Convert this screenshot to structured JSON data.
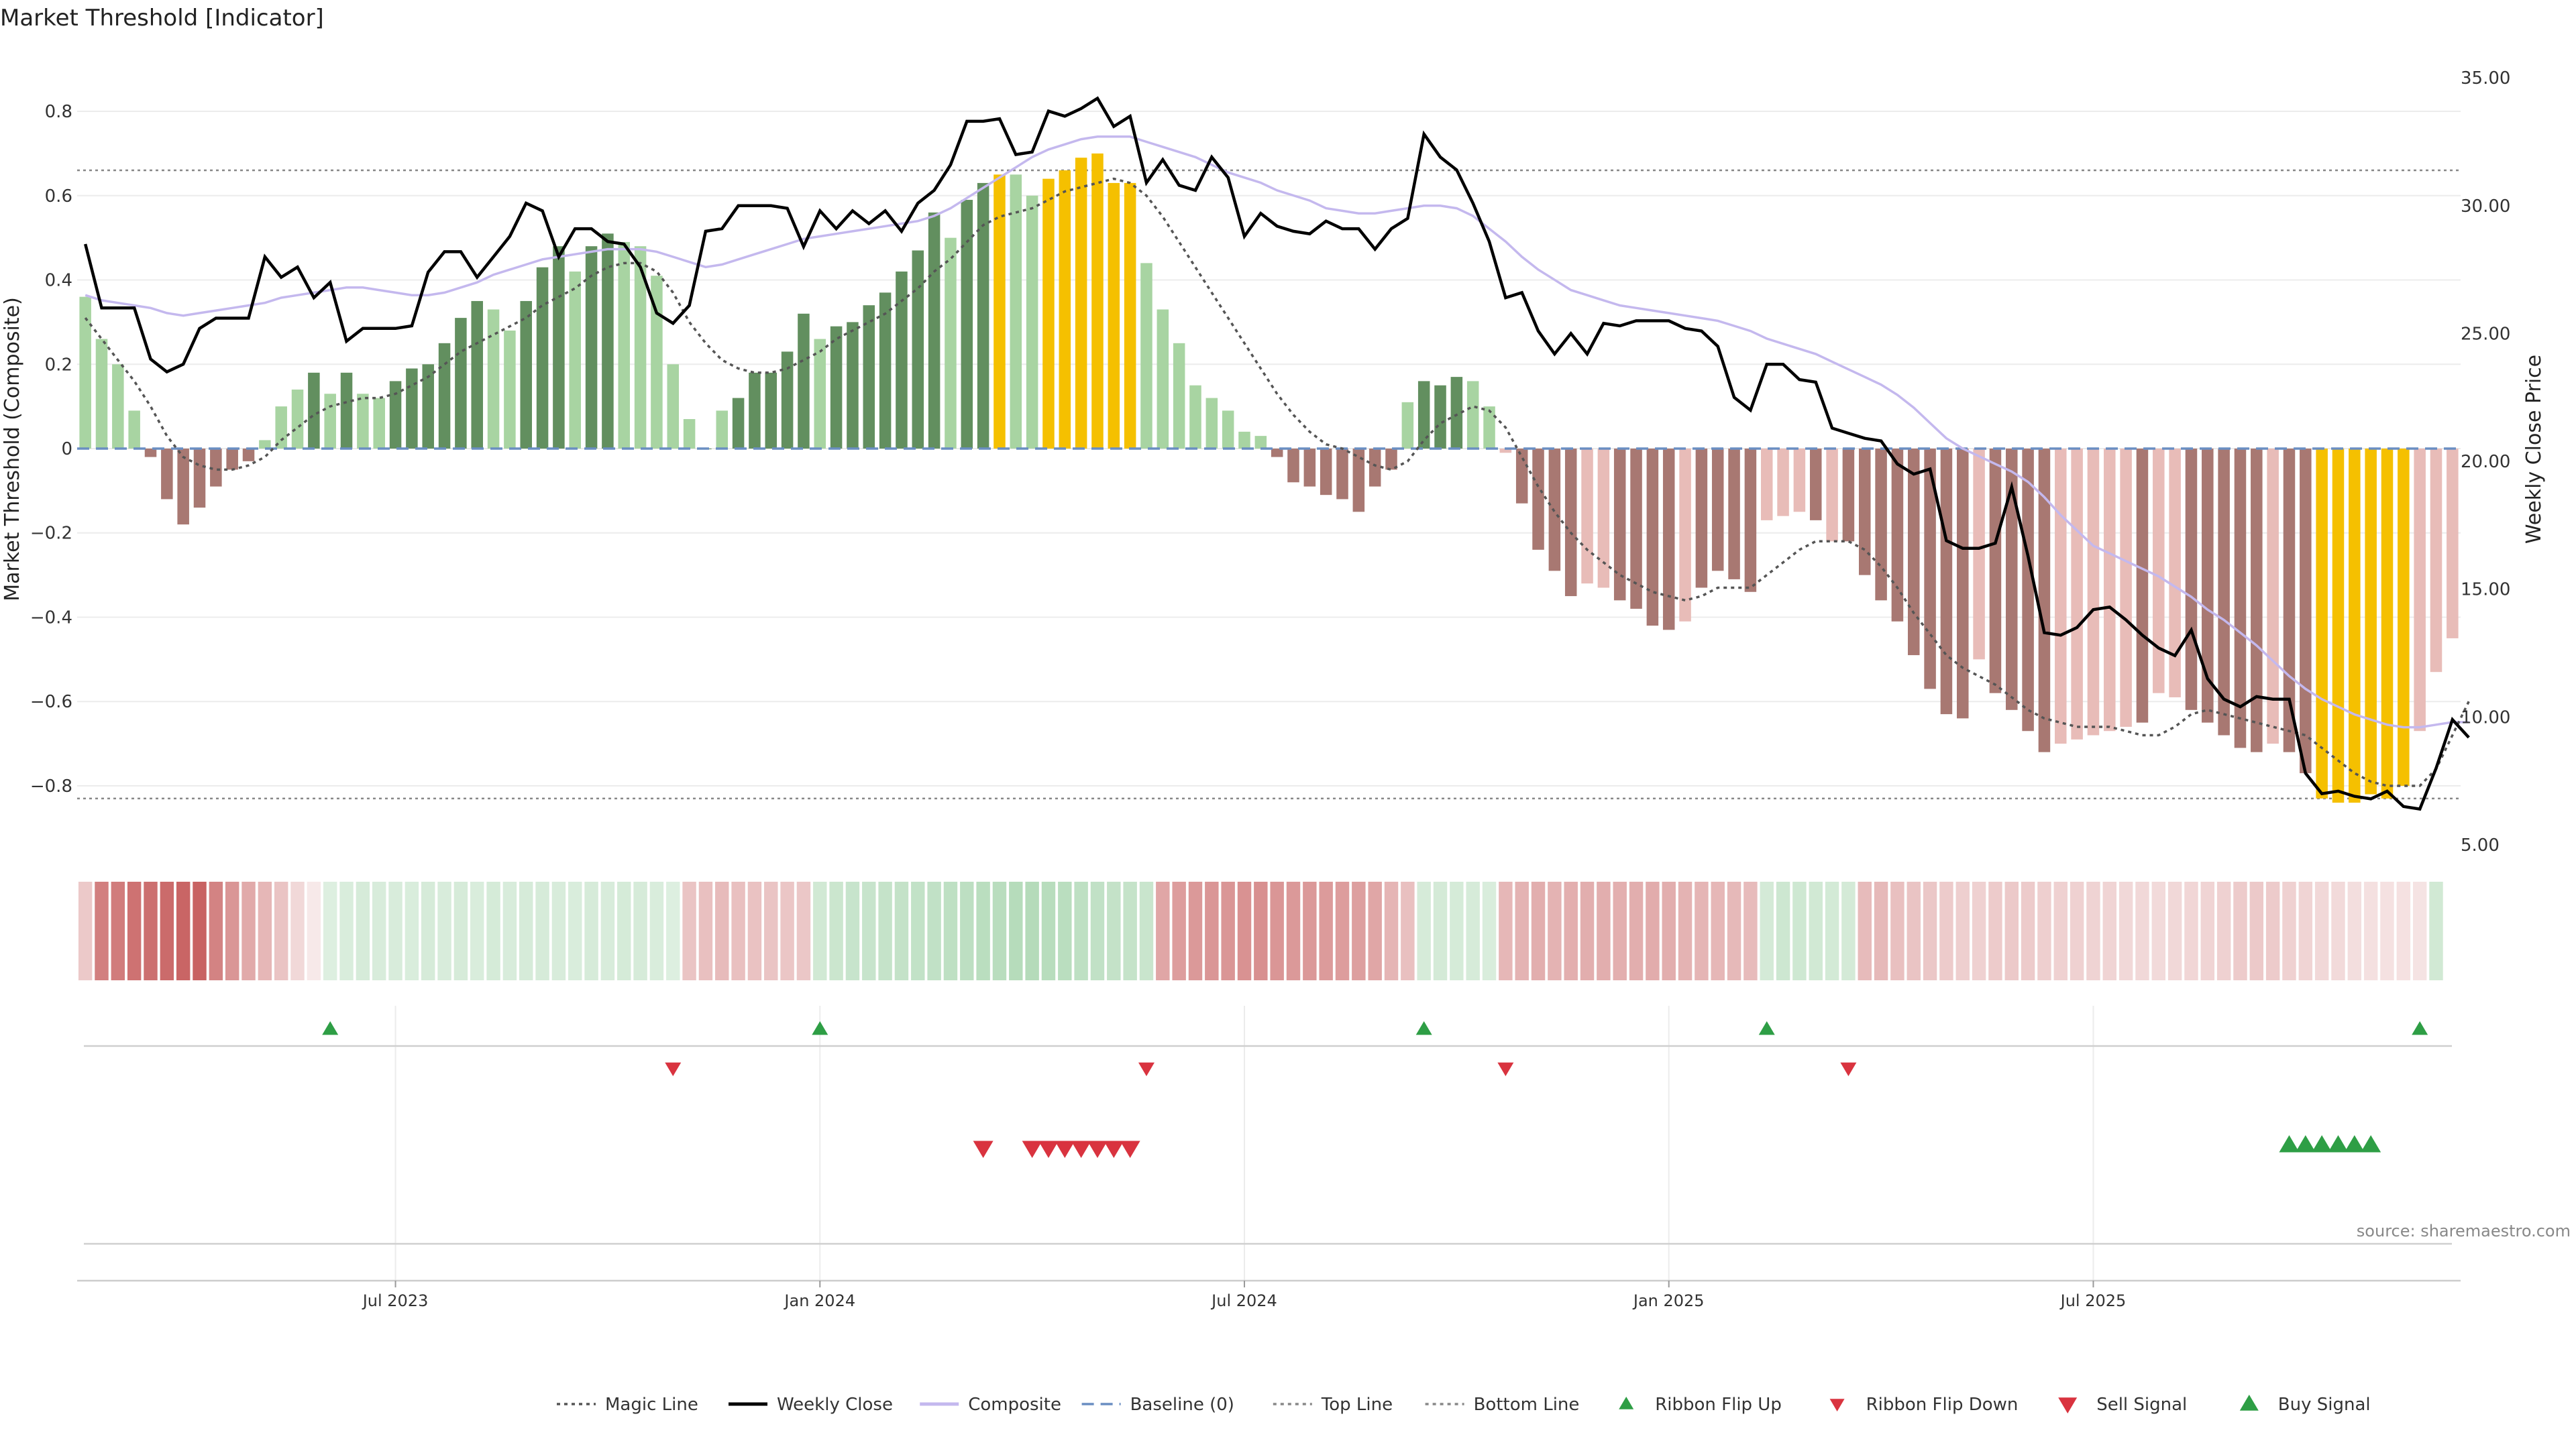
{
  "title": "Market Threshold [Indicator]",
  "source": "source: sharemaestro.com",
  "colors": {
    "strong_green": "#628f5f",
    "light_green": "#a8d4a2",
    "strong_red": "#a87872",
    "light_red": "#e8bcb8",
    "gold": "#f5c000",
    "close_line": "#000000",
    "composite": "#c4b8ee",
    "magic": "#555555",
    "baseline": "#6a8ec2",
    "sell_marker": "#d9333f",
    "buy_marker": "#2e9e45"
  },
  "legend": [
    {
      "label": "Magic Line",
      "kind": "dotted",
      "color": "#555555"
    },
    {
      "label": "Weekly Close",
      "kind": "line",
      "color": "#000000"
    },
    {
      "label": "Composite",
      "kind": "line",
      "color": "#c4b8ee"
    },
    {
      "label": "Baseline (0)",
      "kind": "dashed",
      "color": "#6a8ec2"
    },
    {
      "label": "Top Line",
      "kind": "dotted",
      "color": "#888888"
    },
    {
      "label": "Bottom Line",
      "kind": "dotted",
      "color": "#888888"
    },
    {
      "label": "Ribbon Flip Up",
      "kind": "tri-up",
      "color": "#2e9e45"
    },
    {
      "label": "Ribbon Flip Down",
      "kind": "tri-down",
      "color": "#d9333f"
    },
    {
      "label": "Sell Signal",
      "kind": "tri-down-big",
      "color": "#d9333f"
    },
    {
      "label": "Buy Signal",
      "kind": "tri-up-big",
      "color": "#2e9e45"
    }
  ],
  "chart_data": {
    "type": "bar",
    "title": "Market Threshold [Indicator]",
    "ylabel": "Market Threshold (Composite)",
    "y2label": "Weekly Close Price",
    "ylim": [
      -0.94,
      0.94
    ],
    "y2lim": [
      5.0,
      36.0
    ],
    "yticks": [
      "0.8",
      "0.6",
      "0.4",
      "0.2",
      "0",
      "−0.2",
      "−0.4",
      "−0.6",
      "−0.8"
    ],
    "y2ticks": [
      "35.00",
      "30.00",
      "25.00",
      "20.00",
      "15.00",
      "10.00",
      "5.00"
    ],
    "top_line": 0.66,
    "bottom_line": -0.83,
    "xticks": [
      {
        "label": "Jul 2023",
        "week": 19.5
      },
      {
        "label": "Jan 2024",
        "week": 45.5
      },
      {
        "label": "Jul 2024",
        "week": 71.5
      },
      {
        "label": "Jan 2025",
        "week": 97.5
      },
      {
        "label": "Jul 2025",
        "week": 123.5
      }
    ],
    "series": [
      {
        "name": "Composite",
        "values": [
          0.36,
          0.26,
          0.2,
          0.09,
          -0.02,
          -0.12,
          -0.18,
          -0.14,
          -0.09,
          -0.05,
          -0.03,
          0.02,
          0.1,
          0.14,
          0.18,
          0.13,
          0.18,
          0.13,
          0.12,
          0.16,
          0.19,
          0.2,
          0.25,
          0.31,
          0.35,
          0.33,
          0.28,
          0.35,
          0.43,
          0.48,
          0.42,
          0.48,
          0.51,
          0.49,
          0.48,
          0.41,
          0.2,
          0.07,
          0.0,
          0.09,
          0.12,
          0.18,
          0.18,
          0.23,
          0.32,
          0.26,
          0.29,
          0.3,
          0.34,
          0.37,
          0.42,
          0.47,
          0.56,
          0.5,
          0.59,
          0.63,
          0.65,
          0.65,
          0.6,
          0.64,
          0.66,
          0.69,
          0.7,
          0.63,
          0.63,
          0.44,
          0.33,
          0.25,
          0.15,
          0.12,
          0.09,
          0.04,
          0.03,
          -0.02,
          -0.08,
          -0.09,
          -0.11,
          -0.12,
          -0.15,
          -0.09,
          -0.05,
          0.11,
          0.16,
          0.15,
          0.17,
          0.16,
          0.1,
          -0.01,
          -0.13,
          -0.24,
          -0.29,
          -0.35,
          -0.32,
          -0.33,
          -0.36,
          -0.38,
          -0.42,
          -0.43,
          -0.41,
          -0.33,
          -0.29,
          -0.31,
          -0.34,
          -0.17,
          -0.16,
          -0.15,
          -0.17,
          -0.22,
          -0.22,
          -0.3,
          -0.36,
          -0.41,
          -0.49,
          -0.57,
          -0.63,
          -0.64,
          -0.5,
          -0.58,
          -0.62,
          -0.67,
          -0.72,
          -0.7,
          -0.69,
          -0.68,
          -0.67,
          -0.66,
          -0.65,
          -0.58,
          -0.59,
          -0.62,
          -0.65,
          -0.68,
          -0.71,
          -0.72,
          -0.7,
          -0.72,
          -0.77,
          -0.83,
          -0.84,
          -0.84,
          -0.82,
          -0.83,
          -0.8,
          -0.67,
          -0.53,
          -0.45
        ]
      },
      {
        "name": "Weekly Close",
        "values": [
          28.5,
          26.0,
          26.0,
          26.0,
          24.0,
          23.5,
          23.8,
          25.2,
          25.6,
          25.6,
          25.6,
          28.0,
          27.2,
          27.6,
          26.4,
          27.0,
          24.7,
          25.2,
          25.2,
          25.2,
          25.3,
          27.4,
          28.2,
          28.2,
          27.2,
          28.0,
          28.8,
          30.1,
          29.8,
          28.0,
          29.1,
          29.1,
          28.6,
          28.5,
          27.6,
          25.8,
          25.4,
          26.1,
          29.0,
          29.1,
          30.0,
          30.0,
          30.0,
          29.9,
          28.4,
          29.8,
          29.1,
          29.8,
          29.3,
          29.8,
          29.0,
          30.1,
          30.6,
          31.6,
          33.3,
          33.3,
          33.4,
          32.0,
          32.1,
          33.7,
          33.5,
          33.8,
          34.2,
          33.1,
          33.5,
          30.9,
          31.8,
          30.8,
          30.6,
          31.9,
          31.1,
          28.8,
          29.7,
          29.2,
          29.0,
          28.9,
          29.4,
          29.1,
          29.1,
          28.3,
          29.1,
          29.5,
          32.8,
          31.9,
          31.4,
          30.1,
          28.6,
          26.4,
          26.6,
          25.1,
          24.2,
          25.0,
          24.2,
          25.4,
          25.3,
          25.5,
          25.5,
          25.5,
          25.2,
          25.1,
          24.5,
          22.5,
          22.0,
          23.8,
          23.8,
          23.2,
          23.1,
          21.3,
          21.1,
          20.9,
          20.8,
          19.9,
          19.5,
          19.7,
          16.9,
          16.6,
          16.6,
          16.8,
          19.0,
          16.3,
          13.3,
          13.2,
          13.5,
          14.2,
          14.3,
          13.8,
          13.2,
          12.7,
          12.4,
          13.4,
          11.5,
          10.7,
          10.4,
          10.8,
          10.7,
          10.7,
          7.8,
          7.0,
          7.1,
          6.9,
          6.8,
          7.1,
          6.5,
          6.4,
          8.0,
          9.9,
          9.2
        ]
      },
      {
        "name": "Composite",
        "values": [
          26.5,
          26.3,
          26.2,
          26.1,
          26.0,
          25.8,
          25.7,
          25.8,
          25.9,
          26.0,
          26.1,
          26.2,
          26.4,
          26.5,
          26.6,
          26.7,
          26.8,
          26.8,
          26.7,
          26.6,
          26.5,
          26.5,
          26.6,
          26.8,
          27.0,
          27.3,
          27.5,
          27.7,
          27.9,
          28.0,
          28.1,
          28.2,
          28.3,
          28.3,
          28.3,
          28.2,
          28.0,
          27.8,
          27.6,
          27.7,
          27.9,
          28.1,
          28.3,
          28.5,
          28.7,
          28.8,
          28.9,
          29.0,
          29.1,
          29.2,
          29.3,
          29.4,
          29.6,
          29.9,
          30.3,
          30.7,
          31.1,
          31.5,
          31.9,
          32.2,
          32.4,
          32.6,
          32.7,
          32.7,
          32.7,
          32.5,
          32.3,
          32.1,
          31.9,
          31.6,
          31.3,
          31.1,
          30.9,
          30.6,
          30.4,
          30.2,
          29.9,
          29.8,
          29.7,
          29.7,
          29.8,
          29.9,
          30.0,
          30.0,
          29.9,
          29.6,
          29.1,
          28.6,
          28.0,
          27.5,
          27.1,
          26.7,
          26.5,
          26.3,
          26.1,
          26.0,
          25.9,
          25.8,
          25.7,
          25.6,
          25.5,
          25.3,
          25.1,
          24.8,
          24.6,
          24.4,
          24.2,
          23.9,
          23.6,
          23.3,
          23.0,
          22.6,
          22.1,
          21.5,
          20.9,
          20.5,
          20.2,
          19.9,
          19.6,
          19.2,
          18.6,
          17.9,
          17.3,
          16.7,
          16.4,
          16.1,
          15.8,
          15.5,
          15.1,
          14.7,
          14.2,
          13.8,
          13.3,
          12.8,
          12.2,
          11.6,
          11.1,
          10.7,
          10.4,
          10.1,
          9.9,
          9.7,
          9.6,
          9.6,
          9.7,
          9.8,
          9.8
        ]
      },
      {
        "name": "Magic Line",
        "values": [
          0.31,
          0.26,
          0.21,
          0.16,
          0.1,
          0.03,
          -0.02,
          -0.04,
          -0.05,
          -0.05,
          -0.04,
          -0.02,
          0.02,
          0.05,
          0.08,
          0.1,
          0.11,
          0.12,
          0.12,
          0.13,
          0.15,
          0.17,
          0.2,
          0.23,
          0.25,
          0.27,
          0.29,
          0.31,
          0.34,
          0.36,
          0.38,
          0.41,
          0.43,
          0.44,
          0.44,
          0.42,
          0.37,
          0.3,
          0.25,
          0.21,
          0.19,
          0.18,
          0.18,
          0.19,
          0.21,
          0.23,
          0.26,
          0.28,
          0.3,
          0.32,
          0.35,
          0.38,
          0.42,
          0.45,
          0.49,
          0.53,
          0.55,
          0.56,
          0.57,
          0.59,
          0.61,
          0.62,
          0.63,
          0.64,
          0.63,
          0.6,
          0.55,
          0.49,
          0.43,
          0.37,
          0.31,
          0.25,
          0.19,
          0.13,
          0.08,
          0.04,
          0.01,
          0.0,
          -0.02,
          -0.04,
          -0.05,
          -0.03,
          0.02,
          0.06,
          0.08,
          0.1,
          0.09,
          0.05,
          -0.02,
          -0.09,
          -0.15,
          -0.2,
          -0.24,
          -0.27,
          -0.3,
          -0.32,
          -0.34,
          -0.35,
          -0.36,
          -0.35,
          -0.33,
          -0.33,
          -0.33,
          -0.3,
          -0.27,
          -0.24,
          -0.22,
          -0.22,
          -0.22,
          -0.24,
          -0.28,
          -0.33,
          -0.39,
          -0.44,
          -0.49,
          -0.52,
          -0.54,
          -0.56,
          -0.59,
          -0.62,
          -0.64,
          -0.65,
          -0.66,
          -0.66,
          -0.66,
          -0.67,
          -0.68,
          -0.68,
          -0.66,
          -0.63,
          -0.62,
          -0.63,
          -0.64,
          -0.65,
          -0.66,
          -0.67,
          -0.68,
          -0.71,
          -0.74,
          -0.77,
          -0.79,
          -0.8,
          -0.8,
          -0.8,
          -0.76,
          -0.68,
          -0.6
        ]
      }
    ],
    "bar_colors": [
      "L",
      "L",
      "L",
      "L",
      "R",
      "R",
      "R",
      "R",
      "R",
      "R",
      "R",
      "L",
      "L",
      "L",
      "G",
      "L",
      "G",
      "L",
      "L",
      "G",
      "G",
      "G",
      "G",
      "G",
      "G",
      "L",
      "L",
      "G",
      "G",
      "G",
      "L",
      "G",
      "G",
      "L",
      "L",
      "L",
      "L",
      "L",
      "G",
      "L",
      "G",
      "G",
      "G",
      "G",
      "G",
      "L",
      "G",
      "G",
      "G",
      "G",
      "G",
      "G",
      "G",
      "L",
      "G",
      "G",
      "Y",
      "L",
      "L",
      "Y",
      "Y",
      "Y",
      "Y",
      "Y",
      "Y",
      "L",
      "L",
      "L",
      "L",
      "L",
      "L",
      "L",
      "L",
      "R",
      "R",
      "R",
      "R",
      "R",
      "R",
      "R",
      "R",
      "L",
      "G",
      "G",
      "G",
      "L",
      "L",
      "P",
      "R",
      "R",
      "R",
      "R",
      "P",
      "P",
      "R",
      "R",
      "R",
      "R",
      "P",
      "R",
      "R",
      "R",
      "R",
      "P",
      "P",
      "P",
      "R",
      "P",
      "R",
      "R",
      "R",
      "R",
      "R",
      "R",
      "R",
      "R",
      "P",
      "R",
      "R",
      "R",
      "R",
      "P",
      "P",
      "P",
      "P",
      "P",
      "R",
      "P",
      "P",
      "R",
      "R",
      "R",
      "R",
      "R",
      "P",
      "R",
      "R",
      "Y",
      "Y",
      "Y",
      "Y",
      "Y",
      "Y",
      "P",
      "P",
      "P"
    ],
    "ribbon": [
      -0.25,
      -0.6,
      -0.62,
      -0.66,
      -0.68,
      -0.7,
      -0.72,
      -0.74,
      -0.58,
      -0.5,
      -0.4,
      -0.34,
      -0.28,
      -0.18,
      -0.1,
      0.22,
      0.24,
      0.26,
      0.25,
      0.25,
      0.24,
      0.26,
      0.25,
      0.26,
      0.24,
      0.27,
      0.25,
      0.26,
      0.26,
      0.25,
      0.24,
      0.26,
      0.25,
      0.27,
      0.26,
      0.24,
      0.22,
      -0.28,
      -0.3,
      -0.32,
      -0.3,
      -0.29,
      -0.28,
      -0.27,
      -0.26,
      0.3,
      0.34,
      0.36,
      0.36,
      0.37,
      0.38,
      0.39,
      0.4,
      0.42,
      0.43,
      0.44,
      0.45,
      0.47,
      0.48,
      0.46,
      0.44,
      0.42,
      0.4,
      0.38,
      0.37,
      0.35,
      -0.42,
      -0.46,
      -0.48,
      -0.5,
      -0.5,
      -0.51,
      -0.52,
      -0.5,
      -0.48,
      -0.48,
      -0.47,
      -0.46,
      -0.45,
      -0.42,
      -0.35,
      -0.3,
      0.26,
      0.28,
      0.27,
      0.26,
      0.24,
      -0.34,
      -0.36,
      -0.38,
      -0.36,
      -0.37,
      -0.38,
      -0.38,
      -0.37,
      -0.38,
      -0.39,
      -0.38,
      -0.36,
      -0.35,
      -0.34,
      -0.33,
      -0.32,
      0.28,
      0.32,
      0.31,
      0.3,
      0.29,
      0.28,
      -0.32,
      -0.33,
      -0.3,
      -0.28,
      -0.26,
      -0.24,
      -0.23,
      -0.22,
      -0.24,
      -0.25,
      -0.24,
      -0.23,
      -0.22,
      -0.22,
      -0.21,
      -0.2,
      -0.18,
      -0.18,
      -0.17,
      -0.18,
      -0.19,
      -0.2,
      -0.22,
      -0.24,
      -0.25,
      -0.24,
      -0.22,
      -0.2,
      -0.18,
      -0.17,
      -0.16,
      -0.15,
      -0.14,
      -0.14,
      -0.13,
      0.3
    ],
    "ribbon_flip_up": [
      15,
      45,
      82,
      103,
      143
    ],
    "ribbon_flip_down": [
      36,
      65,
      87,
      108
    ],
    "sell_signal": [
      55,
      58,
      59,
      60,
      61,
      62,
      63,
      64
    ],
    "buy_signal": [
      135,
      136,
      137,
      138,
      139,
      140
    ],
    "grid": true,
    "legend_position": "bottom"
  }
}
